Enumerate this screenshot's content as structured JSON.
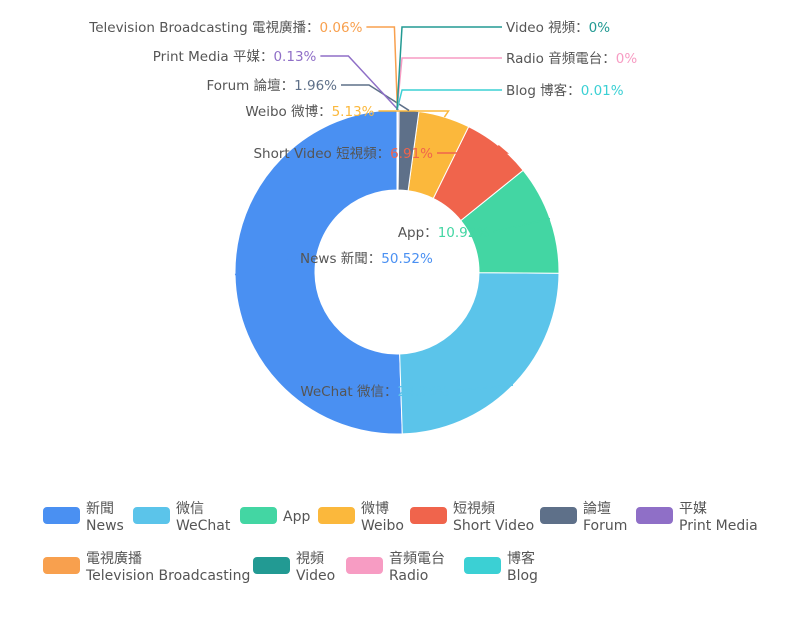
{
  "chart_data": {
    "type": "pie",
    "donut": true,
    "categories": [
      {
        "label_zh": "新聞",
        "label_en": "News",
        "value": 50.52,
        "color": "#4a90f2"
      },
      {
        "label_zh": "微信",
        "label_en": "WeChat",
        "value": 24.36,
        "color": "#5bc4ea"
      },
      {
        "label_zh": "",
        "label_en": "App",
        "value": 10.92,
        "color": "#43d6a3"
      },
      {
        "label_zh": "短視頻",
        "label_en": "Short Video",
        "value": 6.91,
        "color": "#f0644c"
      },
      {
        "label_zh": "微博",
        "label_en": "Weibo",
        "value": 5.13,
        "color": "#fbb83c"
      },
      {
        "label_zh": "論壇",
        "label_en": "Forum",
        "value": 1.96,
        "color": "#5e7089"
      },
      {
        "label_zh": "平媒",
        "label_en": "Print Media",
        "value": 0.13,
        "color": "#8f6fc7"
      },
      {
        "label_zh": "電視廣播",
        "label_en": "Television Broadcasting",
        "value": 0.06,
        "color": "#f8a04e"
      },
      {
        "label_zh": "博客",
        "label_en": "Blog",
        "value": 0.01,
        "color": "#3bd0d4"
      },
      {
        "label_zh": "音頻電台",
        "label_en": "Radio",
        "value": 0,
        "color": "#f79cc3"
      },
      {
        "label_zh": "視頻",
        "label_en": "Video",
        "value": 0,
        "color": "#229a93"
      }
    ],
    "legend_position": "bottom",
    "legend_order": [
      "News",
      "WeChat",
      "App",
      "Weibo",
      "Short Video",
      "Forum",
      "Print Media",
      "Television Broadcasting",
      "Video",
      "Radio",
      "Blog"
    ],
    "value_suffix": "%",
    "separator": "："
  }
}
